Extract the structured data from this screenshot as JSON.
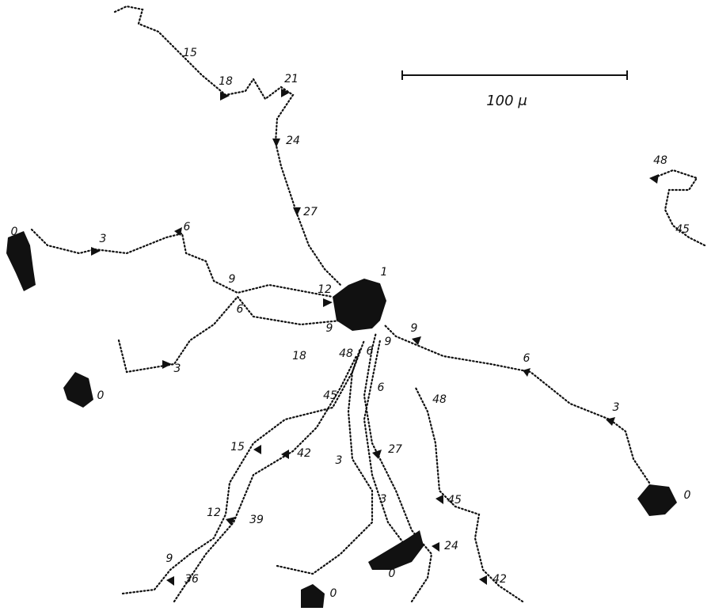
{
  "scale_bar": {
    "label": "100 μ"
  },
  "labels": [
    "15",
    "18",
    "21",
    "24",
    "27",
    "0",
    "3",
    "6",
    "9",
    "6",
    "12",
    "1",
    "9",
    "9",
    "9",
    "18",
    "48",
    "6",
    "3",
    "0",
    "6",
    "6",
    "48",
    "45",
    "3",
    "15",
    "42",
    "27",
    "3",
    "45",
    "3",
    "0",
    "12",
    "39",
    "24",
    "0",
    "9",
    "36",
    "42",
    "0",
    "48",
    "45"
  ]
}
